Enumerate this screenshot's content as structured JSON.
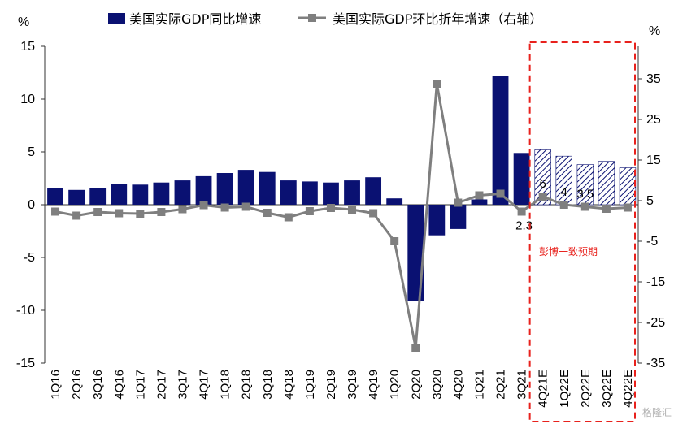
{
  "chart_data": {
    "type": "bar+line",
    "left_unit": "%",
    "right_unit": "%",
    "categories": [
      "1Q16",
      "2Q16",
      "3Q16",
      "4Q16",
      "1Q17",
      "2Q17",
      "3Q17",
      "4Q17",
      "1Q18",
      "2Q18",
      "3Q18",
      "4Q18",
      "1Q19",
      "2Q19",
      "3Q19",
      "4Q19",
      "1Q20",
      "2Q20",
      "3Q20",
      "4Q20",
      "1Q21",
      "2Q21",
      "3Q21",
      "4Q21E",
      "1Q22E",
      "2Q22E",
      "3Q22E",
      "4Q22E"
    ],
    "forecast_start_index": 23,
    "y_left": {
      "min": -15,
      "max": 15,
      "ticks": [
        -15,
        -10,
        -5,
        0,
        5,
        10,
        15
      ],
      "tick_labels": [
        "-15",
        "-10",
        "-5",
        "0",
        "5",
        "10",
        "15"
      ]
    },
    "y_right": {
      "min": -35,
      "max": 43,
      "ticks": [
        -35,
        -25,
        -15,
        -5,
        5,
        15,
        25,
        35
      ],
      "tick_labels": [
        "-35",
        "-25",
        "-15",
        "-5",
        "5",
        "15",
        "25",
        "35"
      ]
    },
    "series": [
      {
        "name": "美国实际GDP同比增速",
        "kind": "bar",
        "axis": "left",
        "color": "#0a1172",
        "forecast_fill": "hatch",
        "values": [
          1.6,
          1.4,
          1.6,
          2.0,
          1.9,
          2.1,
          2.3,
          2.7,
          3.0,
          3.3,
          3.1,
          2.3,
          2.2,
          2.1,
          2.3,
          2.6,
          0.6,
          -9.1,
          -2.9,
          -2.3,
          0.5,
          12.2,
          4.9,
          5.2,
          4.6,
          3.8,
          4.1,
          3.5
        ]
      },
      {
        "name": "美国实际GDP环比折年增速（右轴）",
        "kind": "line",
        "axis": "right",
        "color": "#7f7f7f",
        "values": [
          2.3,
          1.3,
          2.2,
          1.9,
          1.8,
          2.2,
          2.9,
          3.9,
          3.3,
          3.5,
          2.0,
          0.9,
          2.4,
          3.2,
          2.8,
          1.9,
          -5.0,
          -31.2,
          33.8,
          4.5,
          6.3,
          6.7,
          2.3,
          6.0,
          4.0,
          3.5,
          3.0,
          3.3
        ]
      }
    ],
    "data_labels": [
      {
        "index": 22,
        "text": "2.3"
      },
      {
        "index": 23,
        "text": "6"
      },
      {
        "index": 24,
        "text": "4"
      },
      {
        "index": 25,
        "text": "3.5"
      }
    ],
    "annotation": "彭博一致预期",
    "watermark": "格隆汇"
  }
}
